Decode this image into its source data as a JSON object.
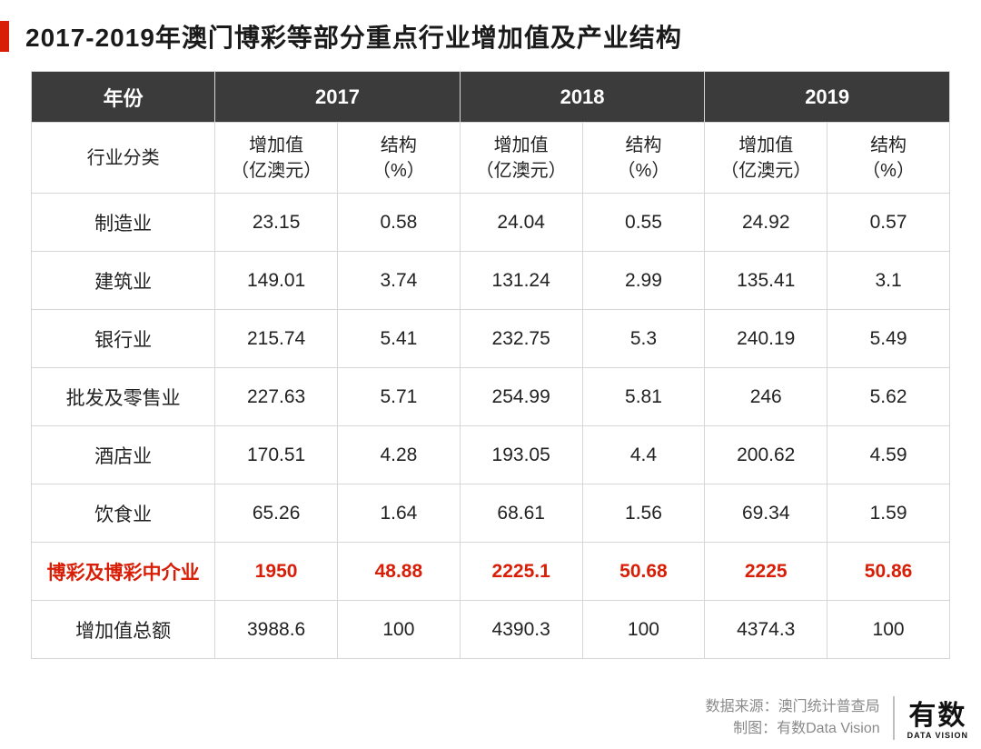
{
  "title": "2017-2019年澳门博彩等部分重点行业增加值及产业结构",
  "colors": {
    "accent": "#d81e06",
    "header_bg": "#3b3b3b",
    "header_text": "#ffffff",
    "border": "#d6d6d6",
    "text": "#222222",
    "footer_text": "#8a8a8a",
    "background": "#ffffff"
  },
  "table": {
    "type": "table",
    "year_header_label": "年份",
    "years": [
      "2017",
      "2018",
      "2019"
    ],
    "category_header_label": "行业分类",
    "sub_headers": {
      "value_label_line1": "增加值",
      "value_label_line2": "（亿澳元）",
      "pct_label_line1": "结构",
      "pct_label_line2": "（%）"
    },
    "rows": [
      {
        "label": "制造业",
        "v2017": "23.15",
        "p2017": "0.58",
        "v2018": "24.04",
        "p2018": "0.55",
        "v2019": "24.92",
        "p2019": "0.57",
        "highlight": false
      },
      {
        "label": "建筑业",
        "v2017": "149.01",
        "p2017": "3.74",
        "v2018": "131.24",
        "p2018": "2.99",
        "v2019": "135.41",
        "p2019": "3.1",
        "highlight": false
      },
      {
        "label": "银行业",
        "v2017": "215.74",
        "p2017": "5.41",
        "v2018": "232.75",
        "p2018": "5.3",
        "v2019": "240.19",
        "p2019": "5.49",
        "highlight": false
      },
      {
        "label": "批发及零售业",
        "v2017": "227.63",
        "p2017": "5.71",
        "v2018": "254.99",
        "p2018": "5.81",
        "v2019": "246",
        "p2019": "5.62",
        "highlight": false
      },
      {
        "label": "酒店业",
        "v2017": "170.51",
        "p2017": "4.28",
        "v2018": "193.05",
        "p2018": "4.4",
        "v2019": "200.62",
        "p2019": "4.59",
        "highlight": false
      },
      {
        "label": "饮食业",
        "v2017": "65.26",
        "p2017": "1.64",
        "v2018": "68.61",
        "p2018": "1.56",
        "v2019": "69.34",
        "p2019": "1.59",
        "highlight": false
      },
      {
        "label": "博彩及博彩中介业",
        "v2017": "1950",
        "p2017": "48.88",
        "v2018": "2225.1",
        "p2018": "50.68",
        "v2019": "2225",
        "p2019": "50.86",
        "highlight": true
      },
      {
        "label": "增加值总额",
        "v2017": "3988.6",
        "p2017": "100",
        "v2018": "4390.3",
        "p2018": "100",
        "v2019": "4374.3",
        "p2019": "100",
        "highlight": false
      }
    ],
    "col_widths_pct": [
      20,
      13.33,
      13.33,
      13.33,
      13.33,
      13.33,
      13.33
    ],
    "fontsize": {
      "title": 28,
      "header": 22,
      "subheader": 20,
      "body": 21
    }
  },
  "footer": {
    "source_label": "数据来源：",
    "source_value": "澳门统计普查局",
    "credit_label": "制图：",
    "credit_value": "有数Data Vision"
  },
  "logo": {
    "cn": "有数",
    "en": "DATA VISION"
  }
}
